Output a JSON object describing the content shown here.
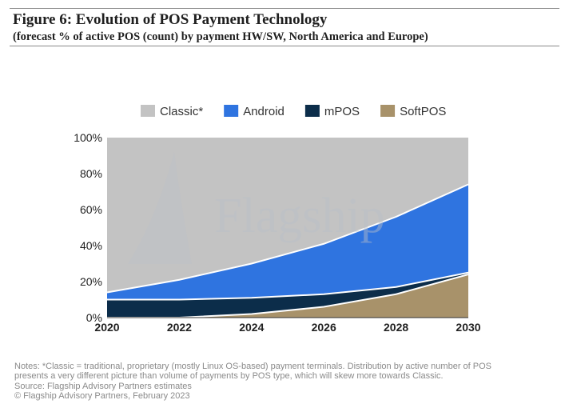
{
  "figure": {
    "title": "Figure 6: Evolution of POS Payment Technology",
    "subtitle": "(forecast % of active POS (count) by payment HW/SW, North America and Europe)"
  },
  "watermark": {
    "text": "Flagship"
  },
  "notes": {
    "line1": "Notes: *Classic = traditional, proprietary (mostly Linux OS-based) payment terminals. Distribution by active number of POS",
    "line2": "presents a very different picture than volume of payments by POS type, which will skew more towards Classic.",
    "source": "Source: Flagship Advisory Partners estimates",
    "copyright": "© Flagship Advisory Partners, February 2023"
  },
  "chart_data": {
    "type": "area",
    "stacked": true,
    "x": [
      2020,
      2022,
      2024,
      2026,
      2028,
      2030
    ],
    "xticks": [
      "2020",
      "2022",
      "2024",
      "2026",
      "2028",
      "2030"
    ],
    "yticks": [
      "0%",
      "20%",
      "40%",
      "60%",
      "80%",
      "100%"
    ],
    "ylim": [
      0,
      100
    ],
    "legend_position": "top",
    "series": [
      {
        "name": "SoftPOS",
        "color": "#a8926a",
        "values": [
          0,
          0,
          2,
          6,
          13,
          24
        ]
      },
      {
        "name": "mPOS",
        "color": "#0c2d4a",
        "values": [
          10,
          10,
          9,
          7,
          4,
          1
        ]
      },
      {
        "name": "Android",
        "color": "#2f74e0",
        "values": [
          4,
          11,
          19,
          28,
          39,
          49
        ]
      },
      {
        "name": "Classic*",
        "color": "#c3c3c3",
        "values": [
          86,
          79,
          70,
          59,
          44,
          26
        ]
      }
    ],
    "legend_order": [
      "Classic*",
      "Android",
      "mPOS",
      "SoftPOS"
    ]
  }
}
